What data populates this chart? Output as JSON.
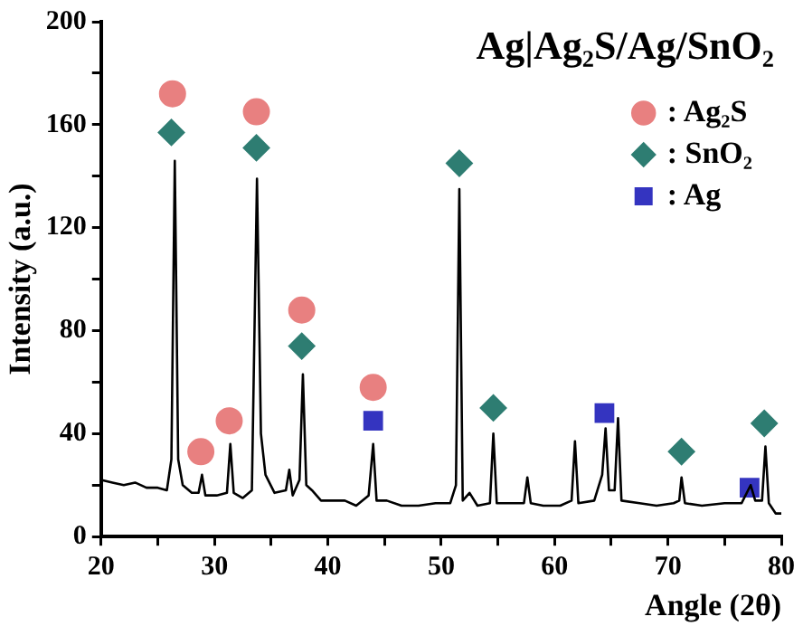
{
  "chart_data": {
    "type": "line",
    "title": "Ag|Ag₂S/Ag/SnO₂",
    "xlabel": "Angle (2θ)",
    "ylabel": "Intensity (a.u.)",
    "xlim": [
      20,
      80
    ],
    "ylim": [
      0,
      200
    ],
    "xticks": [
      20,
      {
        "value": 25,
        "label": null
      },
      30,
      {
        "value": 35,
        "label": null
      },
      40,
      {
        "value": 45,
        "label": null
      },
      50,
      {
        "value": 55,
        "label": null
      },
      60,
      {
        "value": 65,
        "label": null
      },
      70,
      {
        "value": 75,
        "label": null
      },
      80
    ],
    "yticks": [
      0,
      {
        "value": 20,
        "label": null
      },
      40,
      {
        "value": 60,
        "label": null
      },
      80,
      {
        "value": 100,
        "label": null
      },
      120,
      {
        "value": 140,
        "label": null
      },
      160,
      {
        "value": 180,
        "label": null
      },
      200
    ],
    "grid": false,
    "legend": "top right",
    "series": [
      {
        "color": "#000000",
        "marker": "none",
        "line_style": "solid",
        "x": [
          20,
          21,
          22,
          23,
          24,
          25,
          25.8,
          26.2,
          26.5,
          26.8,
          27.2,
          28,
          28.6,
          28.9,
          29.2,
          30.2,
          31.1,
          31.4,
          31.7,
          32.5,
          33.3,
          33.75,
          34.1,
          34.5,
          35.3,
          36.3,
          36.6,
          36.9,
          37.5,
          37.8,
          38.1,
          38.6,
          39.4,
          40.5,
          41.5,
          42.5,
          43.6,
          44,
          44.3,
          45.2,
          46.5,
          48,
          49.5,
          50.8,
          51.3,
          51.6,
          51.9,
          52.5,
          53.2,
          54.3,
          54.6,
          54.9,
          56.5,
          57.3,
          57.6,
          57.9,
          59,
          60.5,
          61.5,
          61.8,
          62.1,
          63.5,
          64.2,
          64.5,
          64.8,
          65.3,
          65.6,
          65.9,
          67.5,
          69,
          70.5,
          71,
          71.2,
          71.5,
          73,
          75,
          76.5,
          77.3,
          77.7,
          78.3,
          78.6,
          78.9,
          79.5,
          80
        ],
        "values": [
          22,
          21,
          20,
          21,
          19,
          19,
          18,
          30,
          146,
          30,
          20,
          17,
          17,
          24,
          16,
          16,
          17,
          36,
          17,
          15,
          18,
          139,
          40,
          24,
          17,
          18,
          26,
          16,
          22,
          63,
          20,
          18,
          14,
          14,
          14,
          12,
          16,
          36,
          14,
          14,
          12,
          12,
          13,
          13,
          20,
          135,
          14,
          17,
          12,
          13,
          40,
          13,
          13,
          13,
          23,
          13,
          12,
          12,
          14,
          37,
          13,
          14,
          24,
          42,
          18,
          18,
          46,
          14,
          13,
          12,
          13,
          14,
          23,
          13,
          12,
          13,
          13,
          20,
          14,
          14,
          35,
          13,
          9,
          9
        ]
      },
      {
        "type": "scatter",
        "name": ": Ag₂S",
        "color": "#e88080",
        "marker": "circle",
        "x": [
          26.3,
          28.8,
          31.3,
          33.7,
          37.7,
          44.0
        ],
        "values": [
          172,
          33,
          45,
          165,
          88,
          58
        ]
      },
      {
        "type": "scatter",
        "name": ": SnO₂",
        "color": "#2e7d72",
        "marker": "diamond",
        "x": [
          26.2,
          33.7,
          37.7,
          51.6,
          54.6,
          71.2,
          78.5
        ],
        "values": [
          157,
          151,
          74,
          145,
          50,
          33,
          44
        ]
      },
      {
        "type": "scatter",
        "name": ": Ag",
        "color": "#3434c0",
        "marker": "square",
        "x": [
          44.0,
          64.4,
          77.2
        ],
        "values": [
          45,
          48,
          19
        ]
      }
    ]
  }
}
